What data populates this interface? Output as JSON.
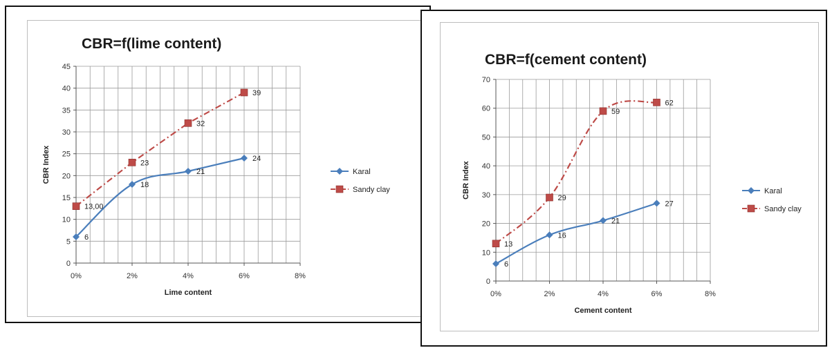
{
  "chart_data": [
    {
      "type": "line",
      "title": "CBR=f(lime content)",
      "xlabel": "Lime content",
      "ylabel": "CBR Index",
      "x_ticks": [
        "0%",
        "2%",
        "4%",
        "6%",
        "8%"
      ],
      "xlim": [
        0,
        8
      ],
      "ylim": [
        0,
        45
      ],
      "y_step": 5,
      "y_ticks": [
        "0",
        "5",
        "10",
        "15",
        "20",
        "25",
        "30",
        "35",
        "40",
        "45"
      ],
      "grid": true,
      "legend_position": "right",
      "series": [
        {
          "name": "Karal",
          "x": [
            0,
            2,
            4,
            6
          ],
          "y": [
            6,
            18,
            21,
            24
          ],
          "labels": [
            "6",
            "18",
            "21",
            "24"
          ],
          "color": "#4a7ebb",
          "marker": "diamond",
          "dash": "solid",
          "smooth": true
        },
        {
          "name": "Sandy clay",
          "x": [
            0,
            2,
            4,
            6
          ],
          "y": [
            13,
            23,
            32,
            39
          ],
          "labels": [
            "13,00",
            "23",
            "32",
            "39"
          ],
          "color": "#be4b48",
          "marker": "square",
          "dash": "dashdot",
          "smooth": false
        }
      ]
    },
    {
      "type": "line",
      "title": "CBR=f(cement content)",
      "xlabel": "Cement content",
      "ylabel": "CBR Index",
      "x_ticks": [
        "0%",
        "2%",
        "4%",
        "6%",
        "8%"
      ],
      "xlim": [
        0,
        8
      ],
      "ylim": [
        0,
        70
      ],
      "y_step": 10,
      "y_ticks": [
        "0",
        "10",
        "20",
        "30",
        "40",
        "50",
        "60",
        "70"
      ],
      "grid": true,
      "legend_position": "right",
      "series": [
        {
          "name": "Karal",
          "x": [
            0,
            2,
            4,
            6
          ],
          "y": [
            6,
            16,
            21,
            27
          ],
          "labels": [
            "6",
            "16",
            "21",
            "27"
          ],
          "color": "#4a7ebb",
          "marker": "diamond",
          "dash": "solid",
          "smooth": true
        },
        {
          "name": "Sandy clay",
          "x": [
            0,
            2,
            4,
            6
          ],
          "y": [
            13,
            29,
            59,
            62
          ],
          "labels": [
            "13",
            "29",
            "59",
            "62"
          ],
          "color": "#be4b48",
          "marker": "square",
          "dash": "dashdot",
          "smooth": true
        }
      ]
    }
  ]
}
